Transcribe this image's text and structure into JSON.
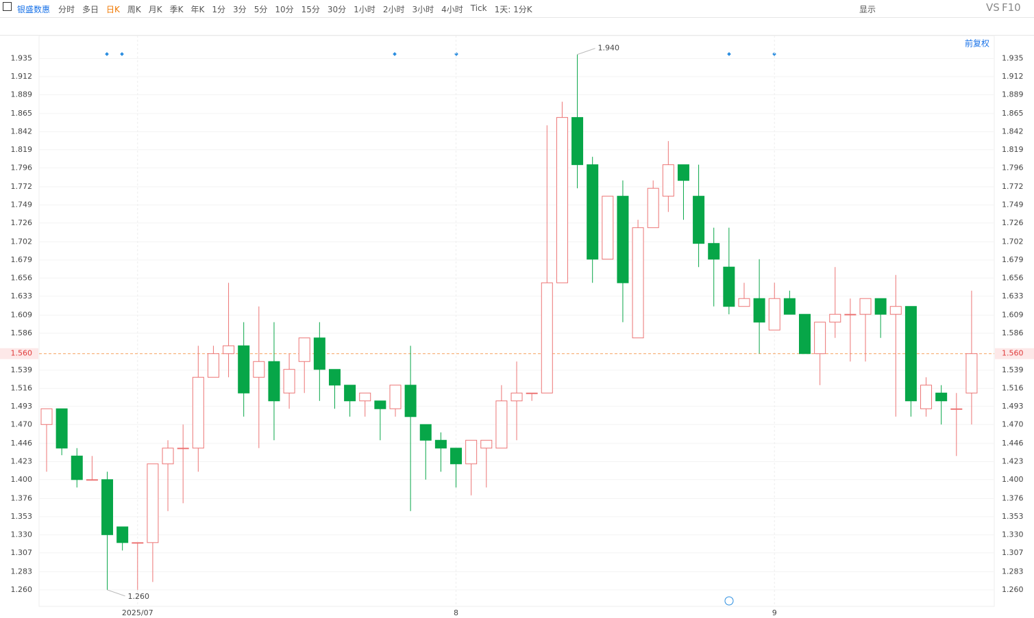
{
  "toolbar": {
    "symbol": "银盛数惠",
    "periods": [
      {
        "label": "分时"
      },
      {
        "label": "多日"
      },
      {
        "label": "日K",
        "active": true
      },
      {
        "label": "周K"
      },
      {
        "label": "月K"
      },
      {
        "label": "季K"
      },
      {
        "label": "年K"
      },
      {
        "label": "1分"
      },
      {
        "label": "3分"
      },
      {
        "label": "5分"
      },
      {
        "label": "10分"
      },
      {
        "label": "15分"
      },
      {
        "label": "30分"
      },
      {
        "label": "1小时"
      },
      {
        "label": "2小时"
      },
      {
        "label": "3小时"
      },
      {
        "label": "4小时"
      },
      {
        "label": "Tick"
      },
      {
        "label": "1天: 1分K"
      }
    ],
    "display": "显示",
    "vs": "VS",
    "f10": "F10",
    "adjust": "前复权"
  },
  "chart_data": {
    "type": "candlestick",
    "categories": [
      null,
      null,
      null,
      null,
      null,
      null,
      "2025/07",
      null,
      null,
      null,
      null,
      null,
      null,
      null,
      null,
      null,
      null,
      null,
      null,
      null,
      null,
      null,
      null,
      null,
      null,
      null,
      null,
      "8",
      null,
      null,
      null,
      null,
      null,
      null,
      null,
      null,
      null,
      null,
      null,
      null,
      null,
      null,
      null,
      null,
      null,
      null,
      null,
      null,
      "9",
      null,
      null,
      null,
      null,
      null,
      null,
      null,
      null,
      null,
      null,
      null,
      null,
      null
    ],
    "open": [
      1.47,
      1.49,
      1.43,
      1.4,
      1.4,
      1.34,
      1.32,
      1.32,
      1.42,
      1.44,
      1.44,
      1.53,
      1.56,
      1.57,
      1.53,
      1.55,
      1.51,
      1.55,
      1.58,
      1.54,
      1.52,
      1.5,
      1.5,
      1.49,
      1.52,
      1.47,
      1.45,
      1.44,
      1.42,
      1.44,
      1.44,
      1.5,
      1.51,
      1.51,
      1.65,
      1.86,
      1.8,
      1.68,
      1.76,
      1.58,
      1.72,
      1.76,
      1.8,
      1.76,
      1.7,
      1.67,
      1.62,
      1.63,
      1.59,
      1.63,
      1.61,
      1.56,
      1.6,
      1.61,
      1.61,
      1.63,
      1.61,
      1.62,
      1.49,
      1.51,
      1.49,
      1.51
    ],
    "high": [
      1.49,
      1.49,
      1.44,
      1.43,
      1.41,
      1.34,
      1.32,
      1.42,
      1.45,
      1.47,
      1.57,
      1.57,
      1.65,
      1.6,
      1.62,
      1.6,
      1.56,
      1.58,
      1.6,
      1.54,
      1.52,
      1.51,
      1.5,
      1.52,
      1.57,
      1.47,
      1.46,
      1.44,
      1.45,
      1.45,
      1.52,
      1.55,
      1.51,
      1.85,
      1.88,
      1.94,
      1.81,
      1.76,
      1.78,
      1.73,
      1.78,
      1.83,
      1.8,
      1.8,
      1.72,
      1.72,
      1.65,
      1.68,
      1.65,
      1.64,
      1.61,
      1.6,
      1.67,
      1.63,
      1.63,
      1.63,
      1.66,
      1.62,
      1.53,
      1.52,
      1.51,
      1.64
    ],
    "low": [
      1.41,
      1.431,
      1.39,
      1.4,
      1.26,
      1.31,
      1.26,
      1.27,
      1.36,
      1.37,
      1.41,
      1.53,
      1.53,
      1.48,
      1.44,
      1.45,
      1.49,
      1.51,
      1.5,
      1.49,
      1.48,
      1.48,
      1.45,
      1.48,
      1.36,
      1.4,
      1.41,
      1.39,
      1.38,
      1.39,
      1.44,
      1.45,
      1.5,
      1.51,
      1.65,
      1.77,
      1.65,
      1.68,
      1.6,
      1.58,
      1.72,
      1.74,
      1.73,
      1.67,
      1.62,
      1.61,
      1.62,
      1.56,
      1.59,
      1.61,
      1.56,
      1.52,
      1.58,
      1.55,
      1.55,
      1.58,
      1.48,
      1.48,
      1.48,
      1.47,
      1.43,
      1.47
    ],
    "close": [
      1.49,
      1.44,
      1.4,
      1.4,
      1.33,
      1.32,
      1.32,
      1.42,
      1.44,
      1.44,
      1.53,
      1.56,
      1.57,
      1.51,
      1.55,
      1.5,
      1.54,
      1.58,
      1.54,
      1.52,
      1.5,
      1.51,
      1.49,
      1.52,
      1.48,
      1.45,
      1.44,
      1.42,
      1.45,
      1.45,
      1.5,
      1.51,
      1.51,
      1.65,
      1.86,
      1.8,
      1.68,
      1.76,
      1.65,
      1.72,
      1.77,
      1.8,
      1.78,
      1.7,
      1.68,
      1.62,
      1.63,
      1.6,
      1.63,
      1.61,
      1.56,
      1.6,
      1.61,
      1.61,
      1.63,
      1.61,
      1.62,
      1.5,
      1.52,
      1.5,
      1.49,
      1.56
    ],
    "up_color": "#ec7474",
    "down_color": "#07a648",
    "ylim": [
      1.239,
      1.964
    ],
    "yticks": [
      1.935,
      1.912,
      1.889,
      1.865,
      1.842,
      1.819,
      1.796,
      1.772,
      1.749,
      1.726,
      1.702,
      1.679,
      1.656,
      1.633,
      1.609,
      1.586,
      1.539,
      1.516,
      1.493,
      {
        "value": 1.47,
        "label": "1.470"
      },
      1.446,
      1.423,
      {
        "value": 1.4,
        "label": "1.400"
      },
      1.376,
      1.353,
      {
        "value": 1.33,
        "label": "1.330"
      },
      1.307,
      1.283,
      {
        "value": 1.26,
        "label": "1.260"
      }
    ],
    "current_price": {
      "value": 1.56,
      "label": "1.560"
    },
    "max_label": "1.940",
    "min_label": "1.260",
    "grid": true
  }
}
